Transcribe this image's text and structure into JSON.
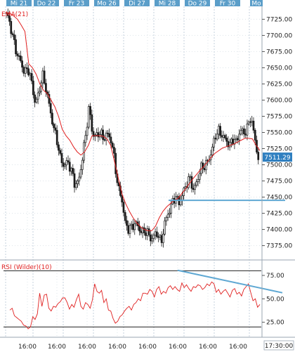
{
  "chart_data": {
    "type": "candlestick",
    "day_labels": [
      "Mi 21",
      "Do 22",
      "Fr 23",
      "Mo 26",
      "Di 27",
      "Mi 28",
      "Do 29",
      "Fr 30",
      "Mo"
    ],
    "time_labels": [
      "16:00",
      "16:00",
      "16:00",
      "16:00",
      "16:00",
      "16:00",
      "16:00",
      "16:00"
    ],
    "last_time_label": "17:30:00",
    "price_axis": {
      "ticks": [
        "7725.00",
        "7700.00",
        "7675.00",
        "7650.00",
        "7625.00",
        "7600.00",
        "7575.00",
        "7550.00",
        "7525.00",
        "7500.00",
        "7475.00",
        "7450.00",
        "7425.00",
        "7400.00",
        "7375.00"
      ],
      "range": [
        7355,
        7745
      ]
    },
    "last_price": "7511.29",
    "ema_label": "EMA(21)",
    "rsi_label": "RSI (Wilder)(10)",
    "rsi_axis": {
      "ticks": [
        "75.00",
        "50.00",
        "25.00"
      ],
      "range": [
        15,
        90
      ],
      "levels": [
        80,
        20
      ]
    },
    "price_path": [
      7735,
      7718,
      7692,
      7670,
      7660,
      7642,
      7650,
      7628,
      7595,
      7610,
      7640,
      7618,
      7590,
      7560,
      7540,
      7510,
      7498,
      7505,
      7492,
      7470,
      7472,
      7505,
      7545,
      7590,
      7545,
      7545,
      7550,
      7540,
      7548,
      7540,
      7510,
      7465,
      7450,
      7410,
      7400,
      7405,
      7410,
      7400,
      7395,
      7398,
      7385,
      7390,
      7395,
      7378,
      7410,
      7425,
      7440,
      7452,
      7440,
      7455,
      7470,
      7480,
      7460,
      7475,
      7495,
      7498,
      7505,
      7520,
      7545,
      7552,
      7545,
      7538,
      7530,
      7540,
      7535,
      7555,
      7548,
      7558,
      7575,
      7540,
      7510
    ],
    "ema_values": [
      7735,
      7734,
      7730,
      7725,
      7716,
      7706,
      7656,
      7650,
      7640,
      7625,
      7615,
      7610,
      7600,
      7590,
      7575,
      7555,
      7545,
      7538,
      7528,
      7520,
      7515,
      7520,
      7530,
      7545,
      7545,
      7545,
      7544,
      7540,
      7530,
      7505,
      7480,
      7455,
      7440,
      7428,
      7418,
      7410,
      7404,
      7400,
      7398,
      7398,
      7405,
      7418,
      7428,
      7435,
      7440,
      7445,
      7448,
      7455,
      7462,
      7470,
      7478,
      7485,
      7492,
      7498,
      7505,
      7512,
      7518,
      7522,
      7526,
      7528,
      7530,
      7532,
      7535,
      7538,
      7541,
      7541,
      7540,
      7530,
      7522
    ],
    "rsi_values": [
      38,
      40,
      32,
      30,
      28,
      26,
      22,
      21,
      18,
      20,
      31,
      28,
      34,
      56,
      42,
      54,
      55,
      40,
      37,
      42,
      41,
      45,
      47,
      51,
      51,
      46,
      39,
      44,
      41,
      49,
      55,
      42,
      39,
      46,
      44,
      40,
      49,
      66,
      58,
      56,
      59,
      46,
      50,
      38,
      37,
      29,
      24,
      26,
      31,
      33,
      37,
      40,
      42,
      38,
      44,
      46,
      50,
      48,
      56,
      56,
      55,
      60,
      58,
      52,
      60,
      63,
      55,
      58,
      56,
      62,
      64,
      60,
      63,
      60,
      58,
      67,
      62,
      65,
      61,
      58,
      63,
      62,
      65,
      64,
      60,
      62,
      66,
      64,
      68,
      66,
      57,
      60,
      55,
      58,
      60,
      56,
      52,
      59,
      61,
      55,
      57,
      53,
      60,
      63,
      66,
      57,
      48,
      50,
      41,
      44
    ],
    "support_line": 7445,
    "rsi_trend": [
      [
        0.675,
        80.5
      ],
      [
        0.965,
        61
      ]
    ],
    "colors": {
      "ema": "#e02020",
      "rsi": "#e02020",
      "candle": "#1a1a1a",
      "grid": "#c4d0dc",
      "day_header": "#5b9ec9",
      "support": "#5fa8d3",
      "last_price_box": "#2f7fc0"
    }
  }
}
